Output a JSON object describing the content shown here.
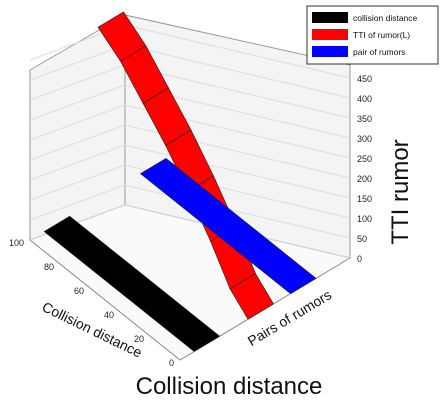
{
  "chart_data": {
    "type": "bar3d",
    "legend": [
      {
        "label": "collision distance",
        "color": "#000000"
      },
      {
        "label": "TTI of rumor(L)",
        "color": "#ff0000"
      },
      {
        "label": "pair of rumors",
        "color": "#0000ff"
      }
    ],
    "zlabel": "TTI rumor",
    "zticks": [
      "0",
      "50",
      "100",
      "150",
      "200",
      "250",
      "300",
      "350",
      "400",
      "450"
    ],
    "zlim": [
      0,
      450
    ],
    "xlabel": "Collision distance",
    "xticks": [
      "0",
      "20",
      "40",
      "60",
      "80",
      "100"
    ],
    "xlim": [
      0,
      100
    ],
    "ylabel": "Pairs of rumors",
    "bottom_title": "Collision distance",
    "series": [
      {
        "name": "collision distance",
        "color": "#000000",
        "x": [
          0,
          100
        ],
        "z": [
          0,
          0
        ]
      },
      {
        "name": "TTI of rumor(L)",
        "color": "#ff0000",
        "x": [
          0,
          12,
          25,
          40,
          55,
          70,
          85,
          100
        ],
        "z": [
          0,
          40,
          120,
          200,
          270,
          330,
          390,
          430
        ]
      },
      {
        "name": "pair of rumors",
        "color": "#0000ff",
        "x": [
          0,
          100
        ],
        "z": [
          0,
          0
        ]
      }
    ]
  }
}
